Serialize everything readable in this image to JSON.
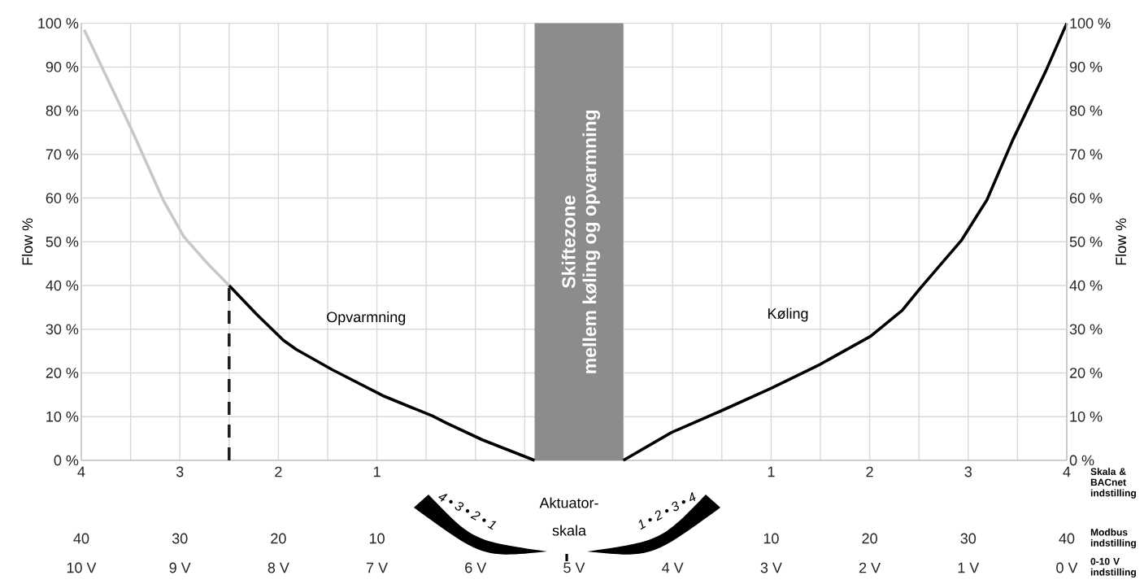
{
  "chart_data": {
    "type": "line",
    "xlabel": "0-10 V indstilling",
    "ylabel": "Flow %",
    "y2label": "Flow %",
    "xlim": [
      10,
      0
    ],
    "xticks": [
      {
        "value": 10,
        "label": "10 V"
      },
      {
        "value": 9.5,
        "label": null
      },
      {
        "value": 9,
        "label": "9 V"
      },
      {
        "value": 8.5,
        "label": null
      },
      {
        "value": 8,
        "label": "8 V"
      },
      {
        "value": 7.5,
        "label": null
      },
      {
        "value": 7,
        "label": "7 V"
      },
      {
        "value": 6.5,
        "label": null
      },
      {
        "value": 6,
        "label": "6 V"
      },
      {
        "value": 5.5,
        "label": null
      },
      {
        "value": 5,
        "label": "5 V"
      },
      {
        "value": 4.5,
        "label": null
      },
      {
        "value": 4,
        "label": "4 V"
      },
      {
        "value": 3.5,
        "label": null
      },
      {
        "value": 3,
        "label": "3 V"
      },
      {
        "value": 2.5,
        "label": null
      },
      {
        "value": 2,
        "label": "2 V"
      },
      {
        "value": 1.5,
        "label": null
      },
      {
        "value": 1,
        "label": "1 V"
      },
      {
        "value": 0.5,
        "label": null
      },
      {
        "value": 0,
        "label": "0 V"
      }
    ],
    "ylim": [
      0,
      100
    ],
    "yticks": [
      {
        "value": 0,
        "label": "0 %"
      },
      {
        "value": 10,
        "label": "10 %"
      },
      {
        "value": 20,
        "label": "20 %"
      },
      {
        "value": 30,
        "label": "30 %"
      },
      {
        "value": 40,
        "label": "40 %"
      },
      {
        "value": 50,
        "label": "50 %"
      },
      {
        "value": 60,
        "label": "60 %"
      },
      {
        "value": 70,
        "label": "70 %"
      },
      {
        "value": 80,
        "label": "80 %"
      },
      {
        "value": 90,
        "label": "90 %"
      },
      {
        "value": 100,
        "label": "100 %"
      }
    ],
    "y2lim": [
      0,
      100
    ],
    "y2ticks": [
      {
        "value": 0,
        "label": "0 %"
      },
      {
        "value": 10,
        "label": "10 %"
      },
      {
        "value": 20,
        "label": "20 %"
      },
      {
        "value": 30,
        "label": "30 %"
      },
      {
        "value": 40,
        "label": "40 %"
      },
      {
        "value": 50,
        "label": "50 %"
      },
      {
        "value": 60,
        "label": "60 %"
      },
      {
        "value": 70,
        "label": "70 %"
      },
      {
        "value": 80,
        "label": "80 %"
      },
      {
        "value": 90,
        "label": "90 %"
      },
      {
        "value": 100,
        "label": "100 %"
      }
    ],
    "grid": true,
    "series": [
      {
        "color": "#c8c8c8",
        "x": [
          9.97,
          9.49,
          9.17,
          8.96,
          8.73,
          8.5
        ],
        "values": [
          98.5,
          75.7,
          59.6,
          51.2,
          45.3,
          40
        ]
      },
      {
        "color": "#000000",
        "x": [
          8.5,
          8.22,
          7.95,
          7.82,
          7.45,
          6.94,
          6.44,
          6.29,
          5.93,
          5.4
        ],
        "values": [
          40,
          33.4,
          27.5,
          25.4,
          20.7,
          14.8,
          10.2,
          8.5,
          4.7,
          0
        ]
      },
      {
        "color": "#000000",
        "x": [
          4.5,
          4.01,
          3.5,
          3.0,
          2.5,
          1.99,
          1.67,
          1.49,
          1.07,
          0.81,
          0.55,
          0.21,
          0
        ],
        "values": [
          0,
          6.4,
          11.4,
          16.5,
          22.0,
          28.4,
          34.3,
          39.3,
          50.3,
          59.6,
          73.2,
          89.2,
          100
        ]
      },
      {
        "color": "#231f20",
        "line_style": "dashed",
        "x": [
          8.5,
          8.5
        ],
        "values": [
          0,
          40
        ]
      }
    ],
    "bands": [
      {
        "axis": "x",
        "from": 5.4,
        "to": 4.5,
        "label": "Skiftezone",
        "color": "#8c8c8c"
      }
    ],
    "annotations": [
      "Opvarmning",
      "Køling",
      "mellem køling og opvarmning",
      "Aktuator-",
      "skala",
      "4 • 3 • 2 • 1",
      "1 • 2 • 3 • 4",
      "Skala & BACnet indstilling",
      "4",
      "3",
      "2",
      "1",
      "1",
      "2",
      "3",
      "4",
      "Modbus indstilling",
      "40",
      "30",
      "20",
      "10",
      "10",
      "20",
      "30",
      "40"
    ]
  }
}
